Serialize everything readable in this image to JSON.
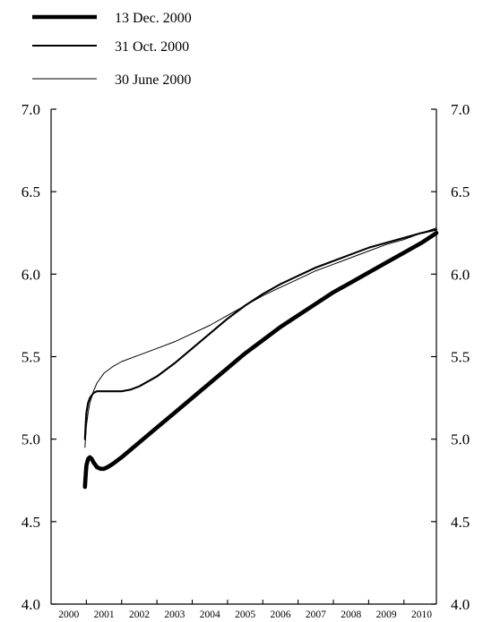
{
  "chart_data": {
    "type": "line",
    "title": "",
    "xlabel": "",
    "ylabel": "",
    "xlim": [
      2000.0,
      2010.92
    ],
    "ylim": [
      4.0,
      7.0
    ],
    "y_ticks": [
      "4.0",
      "4.5",
      "5.0",
      "5.5",
      "6.0",
      "6.5",
      "7.0"
    ],
    "x_ticks": [
      "2000",
      "2001",
      "2002",
      "2003",
      "2004",
      "2005",
      "2006",
      "2007",
      "2008",
      "2009",
      "2010"
    ],
    "y_axis_both_sides": true,
    "grid": false,
    "legend_position": "top-left",
    "series": [
      {
        "name": "13 Dec. 2000",
        "line_weight": "thick",
        "x": [
          2000.96,
          2000.98,
          2001.0,
          2001.05,
          2001.1,
          2001.15,
          2001.2,
          2001.3,
          2001.4,
          2001.5,
          2001.6,
          2001.75,
          2002.0,
          2002.5,
          2003.0,
          2003.5,
          2004.0,
          2004.5,
          2005.0,
          2005.5,
          2006.0,
          2006.5,
          2007.0,
          2007.5,
          2008.0,
          2008.5,
          2009.0,
          2009.5,
          2010.0,
          2010.5,
          2010.92
        ],
        "y": [
          4.71,
          4.78,
          4.84,
          4.88,
          4.89,
          4.88,
          4.86,
          4.83,
          4.82,
          4.82,
          4.83,
          4.85,
          4.89,
          4.98,
          5.07,
          5.16,
          5.25,
          5.34,
          5.43,
          5.52,
          5.6,
          5.68,
          5.75,
          5.82,
          5.89,
          5.95,
          6.01,
          6.07,
          6.13,
          6.19,
          6.25
        ]
      },
      {
        "name": "31 Oct. 2000",
        "line_weight": "medium",
        "x": [
          2000.96,
          2000.98,
          2001.0,
          2001.05,
          2001.1,
          2001.2,
          2001.3,
          2001.5,
          2001.75,
          2002.0,
          2002.25,
          2002.5,
          2003.0,
          2003.5,
          2004.0,
          2004.5,
          2005.0,
          2005.5,
          2006.0,
          2006.5,
          2007.0,
          2007.5,
          2008.0,
          2008.5,
          2009.0,
          2009.5,
          2010.0,
          2010.5,
          2010.92
        ],
        "y": [
          5.0,
          5.09,
          5.16,
          5.22,
          5.25,
          5.28,
          5.29,
          5.29,
          5.29,
          5.29,
          5.3,
          5.32,
          5.38,
          5.46,
          5.55,
          5.64,
          5.73,
          5.81,
          5.88,
          5.94,
          5.99,
          6.04,
          6.08,
          6.12,
          6.16,
          6.19,
          6.22,
          6.25,
          6.27
        ]
      },
      {
        "name": "30 June 2000",
        "line_weight": "thin",
        "x": [
          2000.96,
          2001.0,
          2001.05,
          2001.1,
          2001.2,
          2001.3,
          2001.5,
          2001.75,
          2002.0,
          2002.5,
          2003.0,
          2003.5,
          2004.0,
          2004.5,
          2005.0,
          2005.5,
          2006.0,
          2006.5,
          2007.0,
          2007.5,
          2008.0,
          2008.5,
          2009.0,
          2009.5,
          2010.0,
          2010.5,
          2010.92
        ],
        "y": [
          4.95,
          5.08,
          5.16,
          5.22,
          5.29,
          5.34,
          5.4,
          5.44,
          5.47,
          5.51,
          5.55,
          5.59,
          5.64,
          5.69,
          5.75,
          5.81,
          5.87,
          5.92,
          5.97,
          6.02,
          6.06,
          6.1,
          6.14,
          6.18,
          6.21,
          6.25,
          6.28
        ]
      }
    ]
  }
}
